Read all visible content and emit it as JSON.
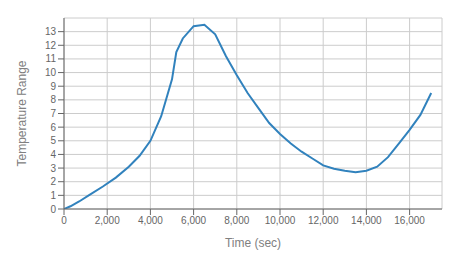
{
  "chart_data": {
    "type": "line",
    "xlabel": "Time (sec)",
    "ylabel": "Temperature Range",
    "x": [
      0,
      300,
      700,
      1200,
      1800,
      2400,
      3000,
      3500,
      4000,
      4500,
      5000,
      5200,
      5500,
      6000,
      6500,
      7000,
      7500,
      8000,
      8500,
      9000,
      9500,
      10000,
      10500,
      11000,
      11500,
      12000,
      12500,
      13000,
      13500,
      14000,
      14500,
      15000,
      15500,
      16000,
      16500,
      17000
    ],
    "values": [
      0.0,
      0.2,
      0.55,
      1.05,
      1.65,
      2.3,
      3.1,
      3.9,
      5.0,
      6.8,
      9.5,
      11.5,
      12.5,
      13.4,
      13.5,
      12.8,
      11.2,
      9.8,
      8.5,
      7.4,
      6.3,
      5.5,
      4.8,
      4.2,
      3.7,
      3.2,
      2.95,
      2.8,
      2.7,
      2.8,
      3.1,
      3.8,
      4.8,
      5.8,
      6.9,
      8.5
    ],
    "xlim": [
      0,
      17500
    ],
    "ylim": [
      0,
      14
    ],
    "xticks": [
      0,
      {
        "value": 2000,
        "label": "2,000"
      },
      {
        "value": 4000,
        "label": "4,000"
      },
      {
        "value": 6000,
        "label": "6,000"
      },
      {
        "value": 8000,
        "label": "8,000"
      },
      {
        "value": 10000,
        "label": "10,000"
      },
      {
        "value": 12000,
        "label": "12,000"
      },
      {
        "value": 14000,
        "label": "14,000"
      },
      {
        "value": 16000,
        "label": "16,000"
      }
    ],
    "yticks": [
      0,
      1,
      2,
      3,
      4,
      5,
      6,
      7,
      8,
      9,
      10,
      11,
      12,
      13
    ],
    "grid": true
  }
}
